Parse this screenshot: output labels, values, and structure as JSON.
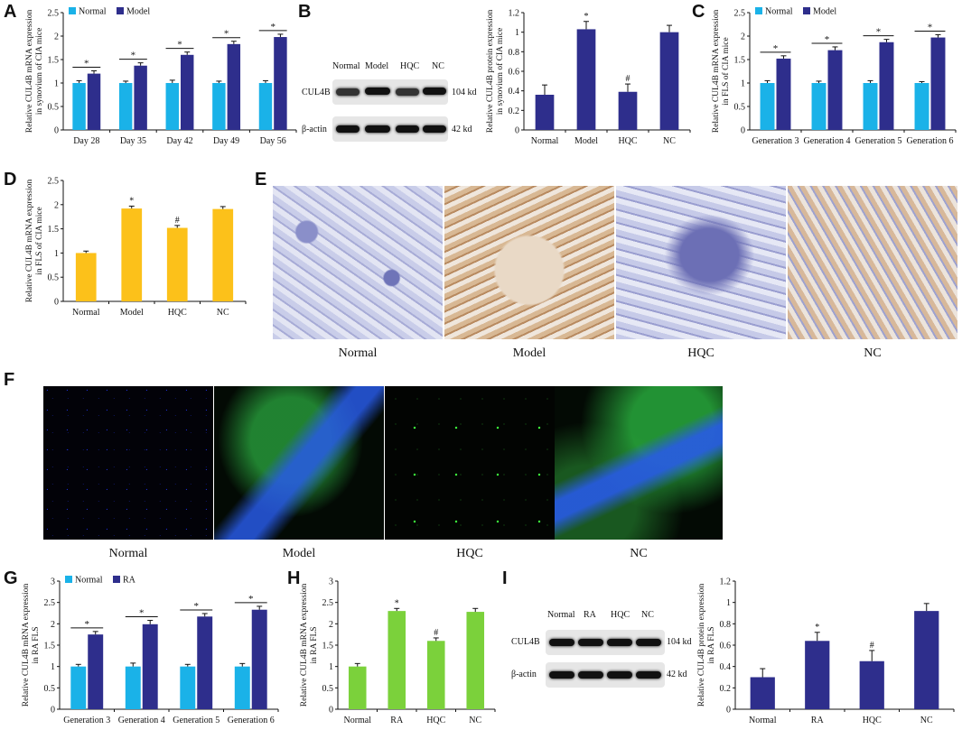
{
  "panels": {
    "A": "A",
    "B": "B",
    "C": "C",
    "D": "D",
    "E": "E",
    "F": "F",
    "G": "G",
    "H": "H",
    "I": "I"
  },
  "colors": {
    "light_blue": "#1ab2e8",
    "navy": "#2e2e8c",
    "yellow": "#fcc11a",
    "green": "#7bd13b"
  },
  "chart_data": [
    {
      "id": "A",
      "type": "bar",
      "categories": [
        "Day 28",
        "Day 35",
        "Day 42",
        "Day 49",
        "Day 56"
      ],
      "series": [
        {
          "name": "Normal",
          "values": [
            1.0,
            1.0,
            1.0,
            1.0,
            1.0
          ],
          "errors": [
            0.05,
            0.04,
            0.06,
            0.04,
            0.05
          ]
        },
        {
          "name": "Model",
          "values": [
            1.2,
            1.37,
            1.6,
            1.83,
            1.98
          ],
          "errors": [
            0.06,
            0.06,
            0.06,
            0.06,
            0.06
          ]
        }
      ],
      "ylabel": "Relative CUL4B mRNA expression in synovium of CIA mice",
      "ylim": [
        0,
        2.5
      ],
      "yticks": [
        0,
        0.5,
        1,
        1.5,
        2,
        2.5
      ],
      "significance": [
        "*",
        "*",
        "*",
        "*",
        "*"
      ],
      "legend": "top-left"
    },
    {
      "id": "B",
      "type": "bar",
      "categories": [
        "Normal",
        "Model",
        "HQC",
        "NC"
      ],
      "series": [
        {
          "values": [
            0.36,
            1.03,
            0.39,
            1.0
          ],
          "errors": [
            0.1,
            0.08,
            0.08,
            0.07
          ]
        }
      ],
      "ylabel": "Relative CUL4B protein expression in synovium of CIA mice",
      "ylim": [
        0,
        1.2
      ],
      "yticks": [
        0,
        0.2,
        0.4,
        0.6,
        0.8,
        1,
        1.2
      ],
      "marks": [
        "",
        "*",
        "#",
        ""
      ]
    },
    {
      "id": "C",
      "type": "bar",
      "categories": [
        "Generation 3",
        "Generation 4",
        "Generation 5",
        "Generation 6"
      ],
      "series": [
        {
          "name": "Normal",
          "values": [
            1.0,
            1.0,
            1.0,
            1.0
          ],
          "errors": [
            0.05,
            0.04,
            0.05,
            0.03
          ]
        },
        {
          "name": "Model",
          "values": [
            1.52,
            1.7,
            1.87,
            1.97
          ],
          "errors": [
            0.06,
            0.07,
            0.06,
            0.06
          ]
        }
      ],
      "ylabel": "Relative CUL4B mRNA expression in FLS of CIA mice",
      "ylim": [
        0,
        2.5
      ],
      "yticks": [
        0,
        0.5,
        1,
        1.5,
        2,
        2.5
      ],
      "significance": [
        "*",
        "*",
        "*",
        "*"
      ],
      "legend": "top-left"
    },
    {
      "id": "D",
      "type": "bar",
      "categories": [
        "Normal",
        "Model",
        "HQC",
        "NC"
      ],
      "series": [
        {
          "values": [
            1.0,
            1.92,
            1.52,
            1.91
          ],
          "errors": [
            0.04,
            0.05,
            0.05,
            0.05
          ]
        }
      ],
      "ylabel": "Relative CUL4B mRNA expression in FLS of CIA mice",
      "ylim": [
        0,
        2.5
      ],
      "yticks": [
        0,
        0.5,
        1,
        1.5,
        2,
        2.5
      ],
      "marks": [
        "",
        "*",
        "#",
        ""
      ]
    },
    {
      "id": "G",
      "type": "bar",
      "categories": [
        "Generation 3",
        "Generation 4",
        "Generation 5",
        "Generation 6"
      ],
      "series": [
        {
          "name": "Normal",
          "values": [
            1.0,
            1.0,
            1.0,
            1.0
          ],
          "errors": [
            0.05,
            0.08,
            0.05,
            0.07
          ]
        },
        {
          "name": "RA",
          "values": [
            1.75,
            1.99,
            2.17,
            2.33
          ],
          "errors": [
            0.07,
            0.09,
            0.07,
            0.08
          ]
        }
      ],
      "ylabel": "Relative CUL4B mRNA expression in RA FLS",
      "ylim": [
        0,
        3
      ],
      "yticks": [
        0,
        0.5,
        1,
        1.5,
        2,
        2.5,
        3
      ],
      "significance": [
        "*",
        "*",
        "*",
        "*"
      ],
      "legend": "top-left"
    },
    {
      "id": "H",
      "type": "bar",
      "categories": [
        "Normal",
        "RA",
        "HQC",
        "NC"
      ],
      "series": [
        {
          "values": [
            1.0,
            2.3,
            1.6,
            2.28
          ],
          "errors": [
            0.07,
            0.06,
            0.07,
            0.08
          ]
        }
      ],
      "ylabel": "Relative CUL4B mRNA expression in RA FLS",
      "ylim": [
        0,
        3
      ],
      "yticks": [
        0,
        0.5,
        1,
        1.5,
        2,
        2.5,
        3
      ],
      "marks": [
        "",
        "*",
        "#",
        ""
      ]
    },
    {
      "id": "I",
      "type": "bar",
      "categories": [
        "Normal",
        "RA",
        "HQC",
        "NC"
      ],
      "series": [
        {
          "values": [
            0.3,
            0.64,
            0.45,
            0.92
          ],
          "errors": [
            0.08,
            0.08,
            0.1,
            0.07
          ]
        }
      ],
      "ylabel": "Relative CUL4B protein expression in RA FLS",
      "ylim": [
        0,
        1.2
      ],
      "yticks": [
        0,
        0.2,
        0.4,
        0.6,
        0.8,
        1,
        1.2
      ],
      "marks": [
        "",
        "*",
        "#",
        ""
      ]
    }
  ],
  "blots": {
    "B": {
      "lanes": [
        "Normal",
        "Model",
        "HQC",
        "NC"
      ],
      "rows": [
        {
          "name": "CUL4B",
          "size": "104 kd"
        },
        {
          "name": "β-actin",
          "size": "42 kd"
        }
      ]
    },
    "I": {
      "lanes": [
        "Normal",
        "RA",
        "HQC",
        "NC"
      ],
      "rows": [
        {
          "name": "CUL4B",
          "size": "104 kd"
        },
        {
          "name": "β-actin",
          "size": "42 kd"
        }
      ]
    }
  },
  "ihc_labels": [
    "Normal",
    "Model",
    "HQC",
    "NC"
  ],
  "if_labels": [
    "Normal",
    "Model",
    "HQC",
    "NC"
  ]
}
